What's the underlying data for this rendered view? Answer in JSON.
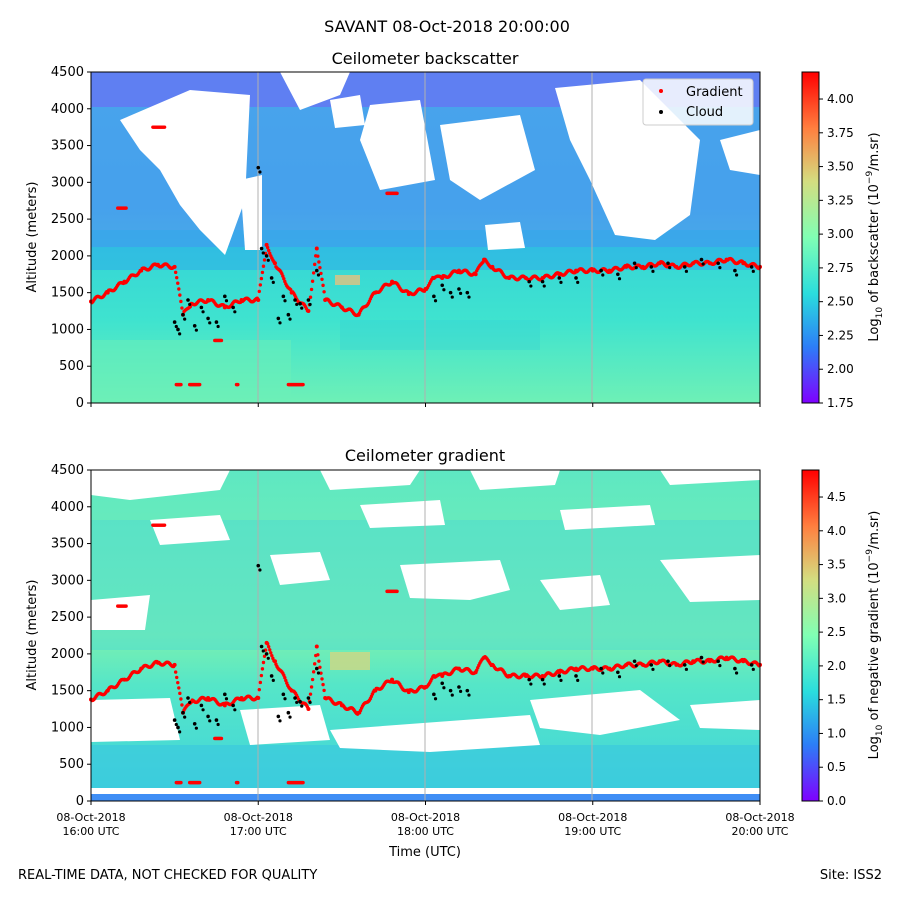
{
  "suptitle": "SAVANT 08-Oct-2018 20:00:00",
  "footer_left": "REAL-TIME DATA, NOT CHECKED FOR QUALITY",
  "footer_right": "Site: ISS2",
  "xlabel": "Time (UTC)",
  "x_ticks": [
    {
      "date": "08-Oct-2018",
      "time": "16:00 UTC"
    },
    {
      "date": "08-Oct-2018",
      "time": "17:00 UTC"
    },
    {
      "date": "08-Oct-2018",
      "time": "18:00 UTC"
    },
    {
      "date": "08-Oct-2018",
      "time": "19:00 UTC"
    },
    {
      "date": "08-Oct-2018",
      "time": "20:00 UTC"
    }
  ],
  "legend": {
    "gradient": "Gradient",
    "cloud": "Cloud"
  },
  "colors": {
    "gradient": "#ff0000",
    "cloud": "#000000",
    "grid": "#b0b0b0",
    "cmap": [
      "#7f00ff",
      "#2c7ef7",
      "#2adddd",
      "#80ffb4",
      "#d4dd80",
      "#ff7f3f",
      "#ff0000"
    ]
  },
  "chart_data": [
    {
      "type": "heatmap",
      "title": "Ceilometer backscatter",
      "ylabel": "Altitude (meters)",
      "xlim_hours": [
        16,
        20
      ],
      "ylim": [
        0,
        4500
      ],
      "y_ticks": [
        "0",
        "500",
        "1000",
        "1500",
        "2000",
        "2500",
        "3000",
        "3500",
        "4000",
        "4500"
      ],
      "colorbar": {
        "label_pre": "Log",
        "label_sub": "10",
        "label_mid": " of backscatter (10",
        "label_sup": "−9",
        "label_post": "/m.sr)",
        "range": [
          1.75,
          4.2
        ],
        "ticks": [
          "1.75",
          "2.00",
          "2.25",
          "2.50",
          "2.75",
          "3.00",
          "3.25",
          "3.50",
          "3.75",
          "4.00"
        ]
      },
      "legend_location": "upper-right"
    },
    {
      "type": "heatmap",
      "title": "Ceilometer gradient",
      "ylabel": "Altitude (meters)",
      "xlim_hours": [
        16,
        20
      ],
      "ylim": [
        0,
        4500
      ],
      "y_ticks": [
        "0",
        "500",
        "1000",
        "1500",
        "2000",
        "2500",
        "3000",
        "3500",
        "4000",
        "4500"
      ],
      "colorbar": {
        "label_pre": "Log",
        "label_sub": "10",
        "label_mid": " of negative gradient (10",
        "label_sup": "−9",
        "label_post": "/m.sr)",
        "range": [
          0,
          4.9
        ],
        "ticks": [
          "0.0",
          "0.5",
          "1.0",
          "1.5",
          "2.0",
          "2.5",
          "3.0",
          "3.5",
          "4.0",
          "4.5"
        ]
      }
    }
  ],
  "gradient_series": {
    "name": "Gradient",
    "time_hours": [
      16.0,
      16.1,
      16.2,
      16.3,
      16.4,
      16.5,
      16.55,
      16.6,
      16.7,
      16.8,
      16.9,
      17.0,
      17.05,
      17.1,
      17.2,
      17.3,
      17.35,
      17.4,
      17.5,
      17.6,
      17.7,
      17.8,
      17.9,
      18.0,
      18.05,
      18.1,
      18.2,
      18.3,
      18.35,
      18.4,
      18.5,
      18.6,
      18.7,
      18.8,
      18.9,
      19.0,
      19.1,
      19.2,
      19.3,
      19.4,
      19.5,
      19.6,
      19.7,
      19.8,
      19.9,
      20.0
    ],
    "altitude_m": [
      1380,
      1500,
      1650,
      1800,
      1880,
      1850,
      1200,
      1350,
      1400,
      1300,
      1400,
      1400,
      2150,
      1900,
      1500,
      1250,
      2100,
      1400,
      1300,
      1200,
      1500,
      1650,
      1480,
      1550,
      1700,
      1700,
      1800,
      1750,
      1950,
      1850,
      1700,
      1700,
      1700,
      1750,
      1800,
      1800,
      1800,
      1850,
      1850,
      1900,
      1850,
      1900,
      1900,
      1950,
      1900,
      1850
    ]
  },
  "cloud_series": {
    "name": "Cloud",
    "time_hours": [
      16.5,
      16.52,
      16.55,
      16.58,
      16.62,
      16.66,
      16.7,
      16.75,
      16.8,
      16.85,
      17.0,
      17.02,
      17.05,
      17.08,
      17.12,
      17.15,
      17.18,
      17.22,
      17.25,
      17.3,
      17.35,
      18.05,
      18.1,
      18.15,
      18.2,
      18.25,
      18.62,
      18.7,
      18.8,
      18.9,
      19.05,
      19.15,
      19.25,
      19.35,
      19.45,
      19.55,
      19.65,
      19.75,
      19.85,
      19.95
    ],
    "altitude_m": [
      1100,
      1000,
      1200,
      1400,
      1050,
      1300,
      1150,
      1100,
      1450,
      1300,
      3200,
      2100,
      2000,
      1700,
      1150,
      1450,
      1200,
      1400,
      1350,
      1400,
      1800,
      1450,
      1600,
      1500,
      1550,
      1500,
      1650,
      1650,
      1700,
      1700,
      1800,
      1750,
      1900,
      1850,
      1900,
      1850,
      1950,
      1900,
      1800,
      1850
    ]
  },
  "special_features": {
    "low_fragments": {
      "altitude_m": 250,
      "segments_hours": [
        [
          16.51,
          16.54
        ],
        [
          16.59,
          16.65
        ],
        [
          16.87,
          16.88
        ],
        [
          17.18,
          17.27
        ]
      ]
    },
    "upper_fragments": [
      {
        "altitude_m": 3750,
        "hours": [
          16.37,
          16.44
        ]
      },
      {
        "altitude_m": 2650,
        "hours": [
          16.16,
          16.21
        ]
      },
      {
        "altitude_m": 2850,
        "hours": [
          17.77,
          17.83
        ]
      },
      {
        "altitude_m": 850,
        "hours": [
          16.74,
          16.78
        ]
      }
    ]
  }
}
